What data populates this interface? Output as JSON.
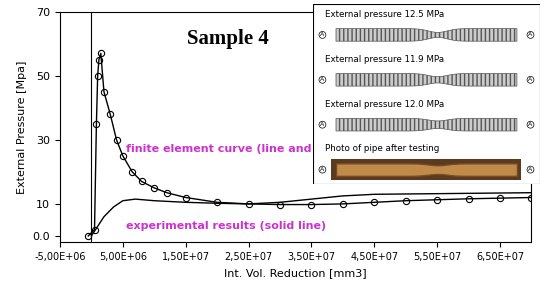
{
  "chart_data": {
    "type": "line",
    "title": "Sample 4",
    "x_label": "Int. Vol. Reduction [mm3]",
    "y_label": "External Pressure [Mpa]",
    "xlim": [
      -5000000,
      70000000
    ],
    "ylim": [
      -2,
      70
    ],
    "xticks": [
      {
        "value": -5000000,
        "label": "-5,00E+06"
      },
      {
        "value": 5000000,
        "label": "5,00E+06"
      },
      {
        "value": 15000000,
        "label": "1,50E+07"
      },
      {
        "value": 25000000,
        "label": "2,50E+07"
      },
      {
        "value": 35000000,
        "label": "3,50E+07"
      },
      {
        "value": 45000000,
        "label": "4,50E+07"
      },
      {
        "value": 55000000,
        "label": "5,50E+07"
      },
      {
        "value": 65000000,
        "label": "6,50E+07"
      }
    ],
    "yticks": [
      0.0,
      10,
      30,
      50,
      70
    ],
    "grid": false,
    "series": [
      {
        "name": "finite element curve (line and symbols)",
        "color": "#000000",
        "marker": "o",
        "line_style": "solid",
        "x": [
          -500000,
          500000,
          800000,
          1000000,
          1200000,
          1500000,
          2000000,
          3000000,
          4000000,
          5000000,
          6500000,
          8000000,
          10000000,
          12000000,
          15000000,
          20000000,
          25000000,
          30000000,
          35000000,
          40000000,
          45000000,
          50000000,
          55000000,
          60000000,
          65000000,
          70000000
        ],
        "values": [
          0,
          2,
          35,
          50,
          55,
          57,
          45,
          38,
          30,
          25,
          20,
          17,
          15,
          13.5,
          12,
          10.5,
          10,
          9.8,
          9.8,
          10,
          10.5,
          11,
          11.3,
          11.6,
          11.8,
          12
        ]
      },
      {
        "name": "experimental results (solid line)",
        "color": "#000000",
        "line_style": "solid",
        "x": [
          0,
          1000000,
          2000000,
          3500000,
          5000000,
          7000000,
          10000000,
          15000000,
          20000000,
          25000000,
          30000000,
          35000000,
          40000000,
          45000000,
          55000000,
          70000000
        ],
        "values": [
          0,
          3,
          6,
          9,
          11,
          11.5,
          11,
          10.5,
          10.2,
          10,
          10.5,
          11.5,
          12.5,
          13,
          13.2,
          13.5
        ]
      }
    ],
    "annotation_color": "#cc33cc",
    "inset": {
      "panels": [
        "External pressure 12.5 MPa",
        "External pressure 11.9 MPa",
        "External pressure 12.0 MPa",
        "Photo of pipe after testing"
      ],
      "end_label": "A"
    }
  }
}
